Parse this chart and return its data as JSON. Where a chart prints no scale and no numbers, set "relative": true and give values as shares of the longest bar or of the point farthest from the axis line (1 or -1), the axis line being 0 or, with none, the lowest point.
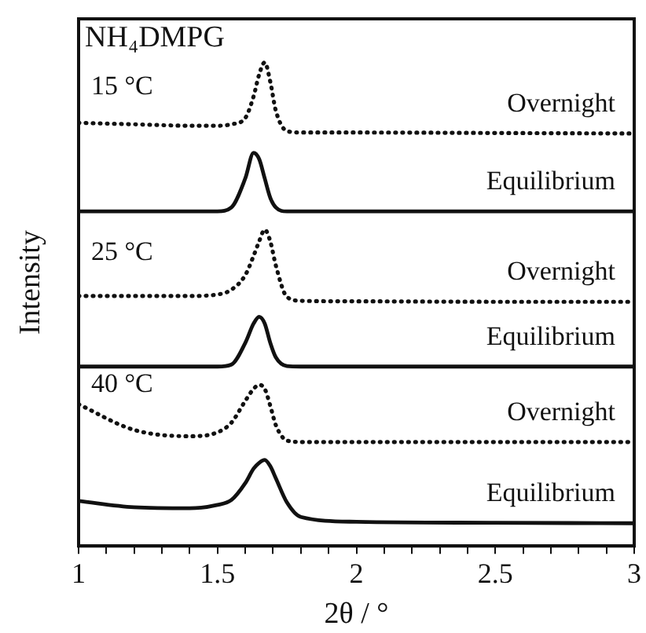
{
  "chart_data": {
    "type": "line",
    "relative": true,
    "xlabel": "2θ / °",
    "ylabel": "Intensity",
    "x": [
      1,
      1.2,
      1.4,
      1.5,
      1.55,
      1.6,
      1.63,
      1.65,
      1.67,
      1.69,
      1.71,
      1.75,
      1.8,
      2,
      2.5,
      3
    ],
    "xlim": [
      1,
      3
    ],
    "xticks": [
      1,
      {
        "value": 1.1,
        "label": null
      },
      {
        "value": 1.2,
        "label": null
      },
      {
        "value": 1.3,
        "label": null
      },
      {
        "value": 1.4,
        "label": null
      },
      1.5,
      {
        "value": 1.6,
        "label": null
      },
      {
        "value": 1.7,
        "label": null
      },
      {
        "value": 1.8,
        "label": null
      },
      {
        "value": 1.9,
        "label": null
      },
      2,
      {
        "value": 2.1,
        "label": null
      },
      {
        "value": 2.2,
        "label": null
      },
      {
        "value": 2.3,
        "label": null
      },
      {
        "value": 2.4,
        "label": null
      },
      2.5,
      {
        "value": 2.6,
        "label": null
      },
      {
        "value": 2.7,
        "label": null
      },
      {
        "value": 2.8,
        "label": null
      },
      {
        "value": 2.9,
        "label": null
      },
      3
    ],
    "series": [
      {
        "name": "Overnight",
        "color": "#111111",
        "line_style": "dotted",
        "values": [
          0.875,
          0.872,
          0.869,
          0.869,
          0.872,
          0.885,
          0.93,
          0.975,
          1,
          0.96,
          0.9,
          0.858,
          0.855,
          0.855,
          0.854,
          0.853
        ]
      },
      {
        "name": "Equilibrium",
        "color": "#111111",
        "line_style": "solid",
        "values": [
          0.692,
          0.692,
          0.692,
          0.692,
          0.7,
          0.76,
          0.813,
          0.8,
          0.76,
          0.72,
          0.7,
          0.692,
          0.692,
          0.692,
          0.692,
          0.692
        ]
      },
      {
        "name": "Overnight",
        "color": "#111111",
        "line_style": "dotted",
        "values": [
          0.517,
          0.517,
          0.517,
          0.52,
          0.53,
          0.56,
          0.6,
          0.63,
          0.654,
          0.63,
          0.58,
          0.515,
          0.507,
          0.506,
          0.505,
          0.505
        ]
      },
      {
        "name": "Equilibrium",
        "color": "#111111",
        "line_style": "solid",
        "values": [
          0.371,
          0.371,
          0.371,
          0.371,
          0.375,
          0.42,
          0.46,
          0.474,
          0.46,
          0.42,
          0.39,
          0.372,
          0.371,
          0.371,
          0.371,
          0.371
        ]
      },
      {
        "name": "Overnight",
        "color": "#111111",
        "line_style": "dotted",
        "values": [
          0.293,
          0.24,
          0.227,
          0.235,
          0.255,
          0.3,
          0.325,
          0.333,
          0.325,
          0.29,
          0.25,
          0.218,
          0.215,
          0.215,
          0.215,
          0.215
        ]
      },
      {
        "name": "Equilibrium",
        "color": "#111111",
        "line_style": "solid",
        "values": [
          0.093,
          0.08,
          0.078,
          0.085,
          0.095,
          0.13,
          0.16,
          0.172,
          0.178,
          0.165,
          0.14,
          0.09,
          0.06,
          0.05,
          0.048,
          0.047
        ]
      }
    ],
    "annotations": [
      "NH₄DMPG",
      "15 °C",
      "25 °C",
      "40 °C"
    ],
    "marker": "none",
    "legend": false
  }
}
